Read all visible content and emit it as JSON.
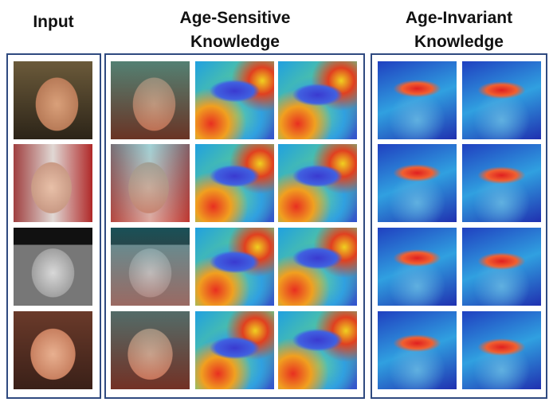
{
  "figure": {
    "columns": [
      {
        "title": "Input"
      },
      {
        "title": "Age-Sensitive Knowledge"
      },
      {
        "title": "Age-Invariant Knowledge"
      }
    ]
  }
}
